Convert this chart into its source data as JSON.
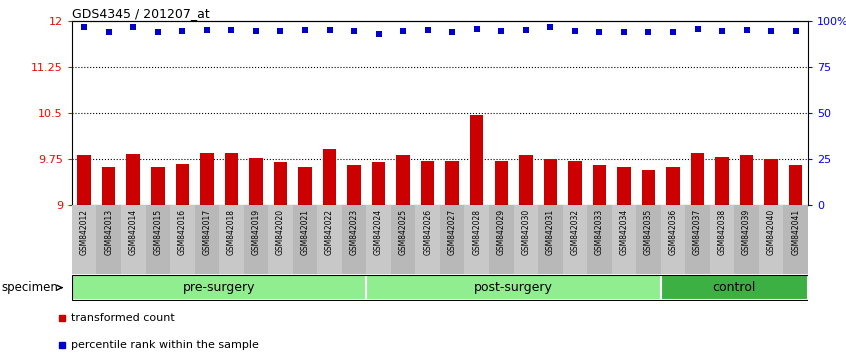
{
  "title": "GDS4345 / 201207_at",
  "samples": [
    "GSM842012",
    "GSM842013",
    "GSM842014",
    "GSM842015",
    "GSM842016",
    "GSM842017",
    "GSM842018",
    "GSM842019",
    "GSM842020",
    "GSM842021",
    "GSM842022",
    "GSM842023",
    "GSM842024",
    "GSM842025",
    "GSM842026",
    "GSM842027",
    "GSM842028",
    "GSM842029",
    "GSM842030",
    "GSM842031",
    "GSM842032",
    "GSM842033",
    "GSM842034",
    "GSM842035",
    "GSM842036",
    "GSM842037",
    "GSM842038",
    "GSM842039",
    "GSM842040",
    "GSM842041"
  ],
  "bar_values": [
    9.82,
    9.62,
    9.84,
    9.62,
    9.68,
    9.85,
    9.85,
    9.77,
    9.7,
    9.63,
    9.92,
    9.65,
    9.7,
    9.82,
    9.72,
    9.72,
    10.47,
    9.72,
    9.82,
    9.75,
    9.72,
    9.65,
    9.62,
    9.57,
    9.63,
    9.85,
    9.78,
    9.82,
    9.75,
    9.65
  ],
  "blue_values": [
    11.91,
    11.82,
    11.91,
    11.82,
    11.84,
    11.85,
    11.85,
    11.84,
    11.84,
    11.85,
    11.85,
    11.84,
    11.8,
    11.84,
    11.85,
    11.83,
    11.87,
    11.84,
    11.85,
    11.91,
    11.84,
    11.82,
    11.82,
    11.82,
    11.82,
    11.87,
    11.84,
    11.85,
    11.84,
    11.84
  ],
  "ylim": [
    9.0,
    12.0
  ],
  "yticks_left": [
    9.0,
    9.75,
    10.5,
    11.25,
    12.0
  ],
  "ytick_labels_left": [
    "9",
    "9.75",
    "10.5",
    "11.25",
    "12"
  ],
  "ytick_labels_right": [
    "0",
    "25",
    "50",
    "75",
    "100%"
  ],
  "hlines": [
    9.75,
    10.5,
    11.25
  ],
  "bar_color": "#CC0000",
  "blue_color": "#0000CC",
  "bar_width": 0.55,
  "group_starts": [
    0,
    12,
    24
  ],
  "group_ends": [
    12,
    24,
    30
  ],
  "group_labels": [
    "pre-surgery",
    "post-surgery",
    "control"
  ],
  "group_colors": [
    "#90EE90",
    "#90EE90",
    "#3CB043"
  ],
  "legend_labels": [
    "transformed count",
    "percentile rank within the sample"
  ],
  "legend_colors": [
    "#CC0000",
    "#0000CC"
  ],
  "xtick_bg_colors": [
    "#D3D3D3",
    "#C0C0C0"
  ]
}
